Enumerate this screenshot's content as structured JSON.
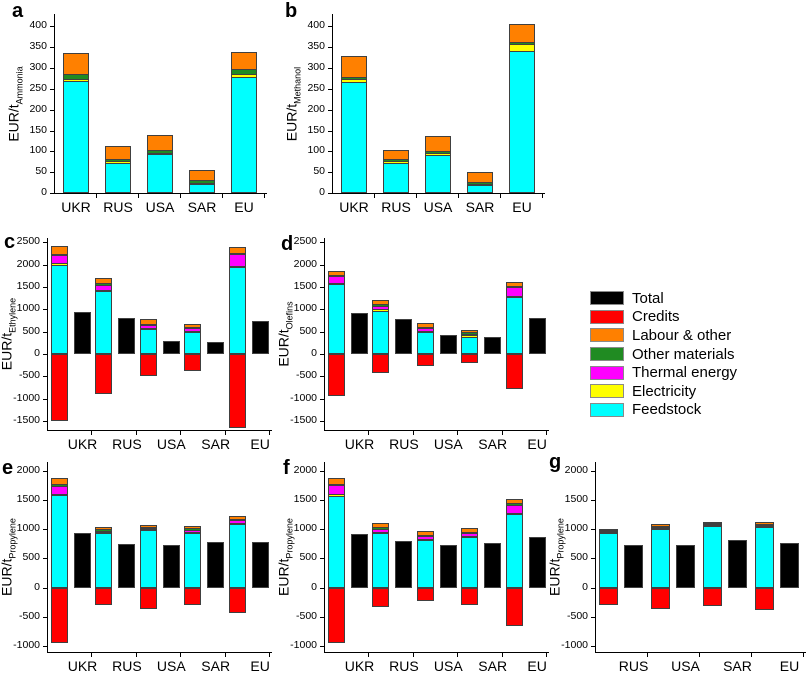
{
  "chart_data": {
    "type": "bar",
    "subtype": "stacked-bar-with-credits-and-total",
    "stack_order": [
      "feedstock",
      "electricity",
      "thermal",
      "other_materials",
      "labour"
    ],
    "colors": {
      "total": "#000000",
      "credits": "#FF0000",
      "labour": "#FF8000",
      "other_materials": "#208B22",
      "thermal": "#FF00FF",
      "electricity": "#FFFF00",
      "feedstock": "#00FFFF"
    },
    "legend": [
      {
        "label": "Total",
        "key": "total"
      },
      {
        "label": "Credits",
        "key": "credits"
      },
      {
        "label": "Labour & other",
        "key": "labour"
      },
      {
        "label": "Other materials",
        "key": "other_materials"
      },
      {
        "label": "Thermal energy",
        "key": "thermal"
      },
      {
        "label": "Electricity",
        "key": "electricity"
      },
      {
        "label": "Feedstock",
        "key": "feedstock"
      }
    ],
    "panels": [
      {
        "id": "a",
        "panel_label": "a",
        "ylabel": "EUR/t",
        "ylabel_sub": "Ammonia",
        "bar_type": "stacked-single",
        "ylim": [
          0,
          430
        ],
        "yticks": [
          0,
          50,
          100,
          150,
          200,
          250,
          300,
          350,
          400
        ],
        "groups": [
          {
            "category": "UKR",
            "stack": {
              "feedstock": 273,
              "electricity": 4,
              "thermal": 0,
              "other_materials": 9,
              "labour": 51
            }
          },
          {
            "category": "RUS",
            "stack": {
              "feedstock": 74,
              "electricity": 3,
              "thermal": 0,
              "other_materials": 4,
              "labour": 31
            }
          },
          {
            "category": "USA",
            "stack": {
              "feedstock": 96,
              "electricity": 2,
              "thermal": 0,
              "other_materials": 4,
              "labour": 38
            }
          },
          {
            "category": "SAR",
            "stack": {
              "feedstock": 20,
              "electricity": 2,
              "thermal": 0,
              "other_materials": 5,
              "labour": 29
            }
          },
          {
            "category": "EU",
            "stack": {
              "feedstock": 285,
              "electricity": 5,
              "thermal": 0,
              "other_materials": 8,
              "labour": 40
            }
          }
        ]
      },
      {
        "id": "b",
        "panel_label": "b",
        "ylabel": "EUR/t",
        "ylabel_sub": "Methanol",
        "bar_type": "stacked-single",
        "ylim": [
          0,
          430
        ],
        "yticks": [
          0,
          50,
          100,
          150,
          200,
          250,
          300,
          350,
          400
        ],
        "groups": [
          {
            "category": "UKR",
            "stack": {
              "feedstock": 273,
              "electricity": 3,
              "thermal": 0,
              "other_materials": 4,
              "labour": 48
            }
          },
          {
            "category": "RUS",
            "stack": {
              "feedstock": 76,
              "electricity": 2,
              "thermal": 0,
              "other_materials": 3,
              "labour": 23
            }
          },
          {
            "category": "USA",
            "stack": {
              "feedstock": 95,
              "electricity": 2,
              "thermal": 0,
              "other_materials": 4,
              "labour": 35
            }
          },
          {
            "category": "SAR",
            "stack": {
              "feedstock": 18,
              "electricity": 1,
              "thermal": 0,
              "other_materials": 3,
              "labour": 28
            }
          },
          {
            "category": "EU",
            "stack": {
              "feedstock": 347,
              "electricity": 14,
              "thermal": 0,
              "other_materials": 4,
              "labour": 42
            }
          }
        ]
      },
      {
        "id": "c",
        "panel_label": "c",
        "ylabel": "EUR/t",
        "ylabel_sub": "Ethylene",
        "bar_type": "stacked-pair-with-total",
        "ylim": [
          -1700,
          2600
        ],
        "yticks": [
          -1500,
          -1000,
          -500,
          0,
          500,
          1000,
          1500,
          2000,
          2500
        ],
        "groups": [
          {
            "category": "UKR",
            "stack": {
              "feedstock": 2070,
              "electricity": 15,
              "thermal": 160,
              "other_materials": 15,
              "labour": 170
            },
            "credits": -1490,
            "total": 950
          },
          {
            "category": "RUS",
            "stack": {
              "feedstock": 1480,
              "electricity": 15,
              "thermal": 85,
              "other_materials": 15,
              "labour": 105
            },
            "credits": -900,
            "total": 810
          },
          {
            "category": "USA",
            "stack": {
              "feedstock": 615,
              "electricity": 10,
              "thermal": 55,
              "other_materials": 10,
              "labour": 90
            },
            "credits": -480,
            "total": 300
          },
          {
            "category": "SAR",
            "stack": {
              "feedstock": 555,
              "electricity": 10,
              "thermal": 45,
              "other_materials": 10,
              "labour": 60
            },
            "credits": -380,
            "total": 280
          },
          {
            "category": "EU",
            "stack": {
              "feedstock": 2010,
              "electricity": 15,
              "thermal": 245,
              "other_materials": 15,
              "labour": 115
            },
            "credits": -1650,
            "total": 750
          }
        ]
      },
      {
        "id": "d",
        "panel_label": "d",
        "ylabel": "EUR/t",
        "ylabel_sub": "Olefins",
        "bar_type": "stacked-pair-with-total",
        "ylim": [
          -1700,
          2600
        ],
        "yticks": [
          -1500,
          -1000,
          -500,
          0,
          500,
          1000,
          1500,
          2000,
          2500
        ],
        "groups": [
          {
            "category": "UKR",
            "stack": {
              "feedstock": 1640,
              "electricity": 10,
              "thermal": 130,
              "other_materials": 10,
              "labour": 80
            },
            "credits": -950,
            "total": 930
          },
          {
            "category": "RUS",
            "stack": {
              "feedstock": 1040,
              "electricity": 10,
              "thermal": 70,
              "other_materials": 10,
              "labour": 75
            },
            "credits": -430,
            "total": 780
          },
          {
            "category": "USA",
            "stack": {
              "feedstock": 555,
              "electricity": 10,
              "thermal": 50,
              "other_materials": 10,
              "labour": 65
            },
            "credits": -270,
            "total": 430
          },
          {
            "category": "SAR",
            "stack": {
              "feedstock": 455,
              "electricity": 10,
              "thermal": 25,
              "other_materials": 10,
              "labour": 45
            },
            "credits": -190,
            "total": 380
          },
          {
            "category": "EU",
            "stack": {
              "feedstock": 1345,
              "electricity": 10,
              "thermal": 175,
              "other_materials": 10,
              "labour": 65
            },
            "credits": -790,
            "total": 810
          }
        ]
      },
      {
        "id": "e",
        "panel_label": "e",
        "ylabel": "EUR/t",
        "ylabel_sub": "Propylene",
        "bar_type": "stacked-pair-with-total",
        "ylim": [
          -1100,
          2150
        ],
        "yticks": [
          -1000,
          -500,
          0,
          500,
          1000,
          1500,
          2000
        ],
        "groups": [
          {
            "category": "UKR",
            "stack": {
              "feedstock": 1645,
              "electricity": 5,
              "thermal": 125,
              "other_materials": 5,
              "labour": 90
            },
            "credits": -950,
            "total": 930
          },
          {
            "category": "RUS",
            "stack": {
              "feedstock": 1000,
              "electricity": 3,
              "thermal": 5,
              "other_materials": 5,
              "labour": 22
            },
            "credits": -290,
            "total": 740
          },
          {
            "category": "USA",
            "stack": {
              "feedstock": 1050,
              "electricity": 3,
              "thermal": 3,
              "other_materials": 4,
              "labour": 15
            },
            "credits": -360,
            "total": 730
          },
          {
            "category": "SAR",
            "stack": {
              "feedstock": 1000,
              "electricity": 5,
              "thermal": 15,
              "other_materials": 10,
              "labour": 30
            },
            "credits": -290,
            "total": 780
          },
          {
            "category": "EU",
            "stack": {
              "feedstock": 1150,
              "electricity": 5,
              "thermal": 35,
              "other_materials": 5,
              "labour": 25
            },
            "credits": -430,
            "total": 790
          }
        ]
      },
      {
        "id": "f",
        "panel_label": "f",
        "ylabel": "EUR/t",
        "ylabel_sub": "Propylene",
        "bar_type": "stacked-pair-with-total",
        "ylim": [
          -1100,
          2150
        ],
        "yticks": [
          -1000,
          -500,
          0,
          500,
          1000,
          1500,
          2000
        ],
        "groups": [
          {
            "category": "UKR",
            "stack": {
              "feedstock": 1630,
              "electricity": 5,
              "thermal": 145,
              "other_materials": 5,
              "labour": 85
            },
            "credits": -940,
            "total": 920
          },
          {
            "category": "RUS",
            "stack": {
              "feedstock": 990,
              "electricity": 5,
              "thermal": 45,
              "other_materials": 10,
              "labour": 60
            },
            "credits": -330,
            "total": 800
          },
          {
            "category": "USA",
            "stack": {
              "feedstock": 865,
              "electricity": 5,
              "thermal": 40,
              "other_materials": 10,
              "labour": 50
            },
            "credits": -220,
            "total": 730
          },
          {
            "category": "SAR",
            "stack": {
              "feedstock": 930,
              "electricity": 5,
              "thermal": 25,
              "other_materials": 10,
              "labour": 50
            },
            "credits": -290,
            "total": 760
          },
          {
            "category": "EU",
            "stack": {
              "feedstock": 1310,
              "electricity": 5,
              "thermal": 135,
              "other_materials": 10,
              "labour": 60
            },
            "credits": -660,
            "total": 870
          }
        ]
      },
      {
        "id": "g",
        "panel_label": "g",
        "ylabel": "EUR/t",
        "ylabel_sub": "Propylene",
        "bar_type": "stacked-pair-with-total",
        "ylim": [
          -1100,
          2150
        ],
        "yticks": [
          -1000,
          -500,
          0,
          500,
          1000,
          1500,
          2000
        ],
        "groups": [
          {
            "category": "RUS",
            "stack": {
              "feedstock": 995,
              "electricity": 2,
              "thermal": 2,
              "other_materials": 3,
              "labour": 8
            },
            "credits": -290,
            "total": 730
          },
          {
            "category": "USA",
            "stack": {
              "feedstock": 1065,
              "electricity": 2,
              "thermal": 2,
              "other_materials": 3,
              "labour": 13
            },
            "credits": -360,
            "total": 730
          },
          {
            "category": "SAR",
            "stack": {
              "feedstock": 1115,
              "electricity": 2,
              "thermal": 2,
              "other_materials": 3,
              "labour": 8
            },
            "credits": -310,
            "total": 820
          },
          {
            "category": "EU",
            "stack": {
              "feedstock": 1105,
              "electricity": 2,
              "thermal": 2,
              "other_materials": 3,
              "labour": 18
            },
            "credits": -390,
            "total": 760
          }
        ]
      }
    ]
  }
}
